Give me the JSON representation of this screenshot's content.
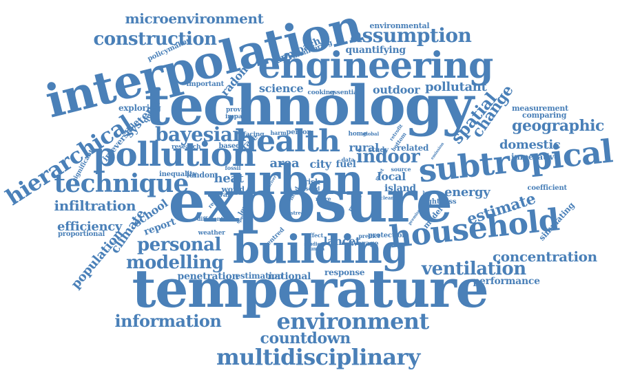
{
  "color": "#4a80b8",
  "words": [
    "technology",
    "exposure",
    "temperature",
    "interpolation",
    "engineering",
    "urban",
    "building",
    "household",
    "subtropical",
    "pollution",
    "technique",
    "health",
    "environment",
    "multidisciplinary",
    "hierarchical",
    "construction",
    "microenvironment",
    "assumption",
    "bayesian",
    "personal",
    "modelling",
    "ventilation",
    "information",
    "countdown",
    "geographic",
    "estimate",
    "spatial",
    "change",
    "indoor",
    "concentration",
    "domestic",
    "infiltration",
    "efficiency",
    "population",
    "climate",
    "energy",
    "science",
    "outdoor",
    "pollutant",
    "radon",
    "system",
    "irreversible",
    "quality",
    "exploring",
    "school",
    "report",
    "area",
    "city",
    "fuel",
    "rural",
    "local",
    "island",
    "heat",
    "lancet",
    "national",
    "penetration",
    "estimation",
    "response",
    "performance",
    "measurement",
    "comparing",
    "imperative",
    "coefficient",
    "simulating",
    "tightness",
    "model",
    "protection",
    "average",
    "predict",
    "studies",
    "human",
    "effect",
    "centred",
    "weather",
    "proportional",
    "different",
    "spend",
    "reduce",
    "level",
    "london",
    "inequality",
    "world",
    "taiwan",
    "risk",
    "solid",
    "more",
    "street",
    "mercy",
    "cleaner",
    "heating",
    "premise",
    "related",
    "study",
    "source",
    "emission",
    "home",
    "global",
    "retrofit",
    "bottom",
    "person",
    "harm",
    "facing",
    "based",
    "research",
    "rate",
    "fossil",
    "impact",
    "provide",
    "important",
    "cooking",
    "essential",
    "approach",
    "monitoring",
    "quantifying",
    "environmental",
    "policymaker",
    "significant",
    "data",
    "driver",
    "meet",
    "need",
    "station"
  ]
}
